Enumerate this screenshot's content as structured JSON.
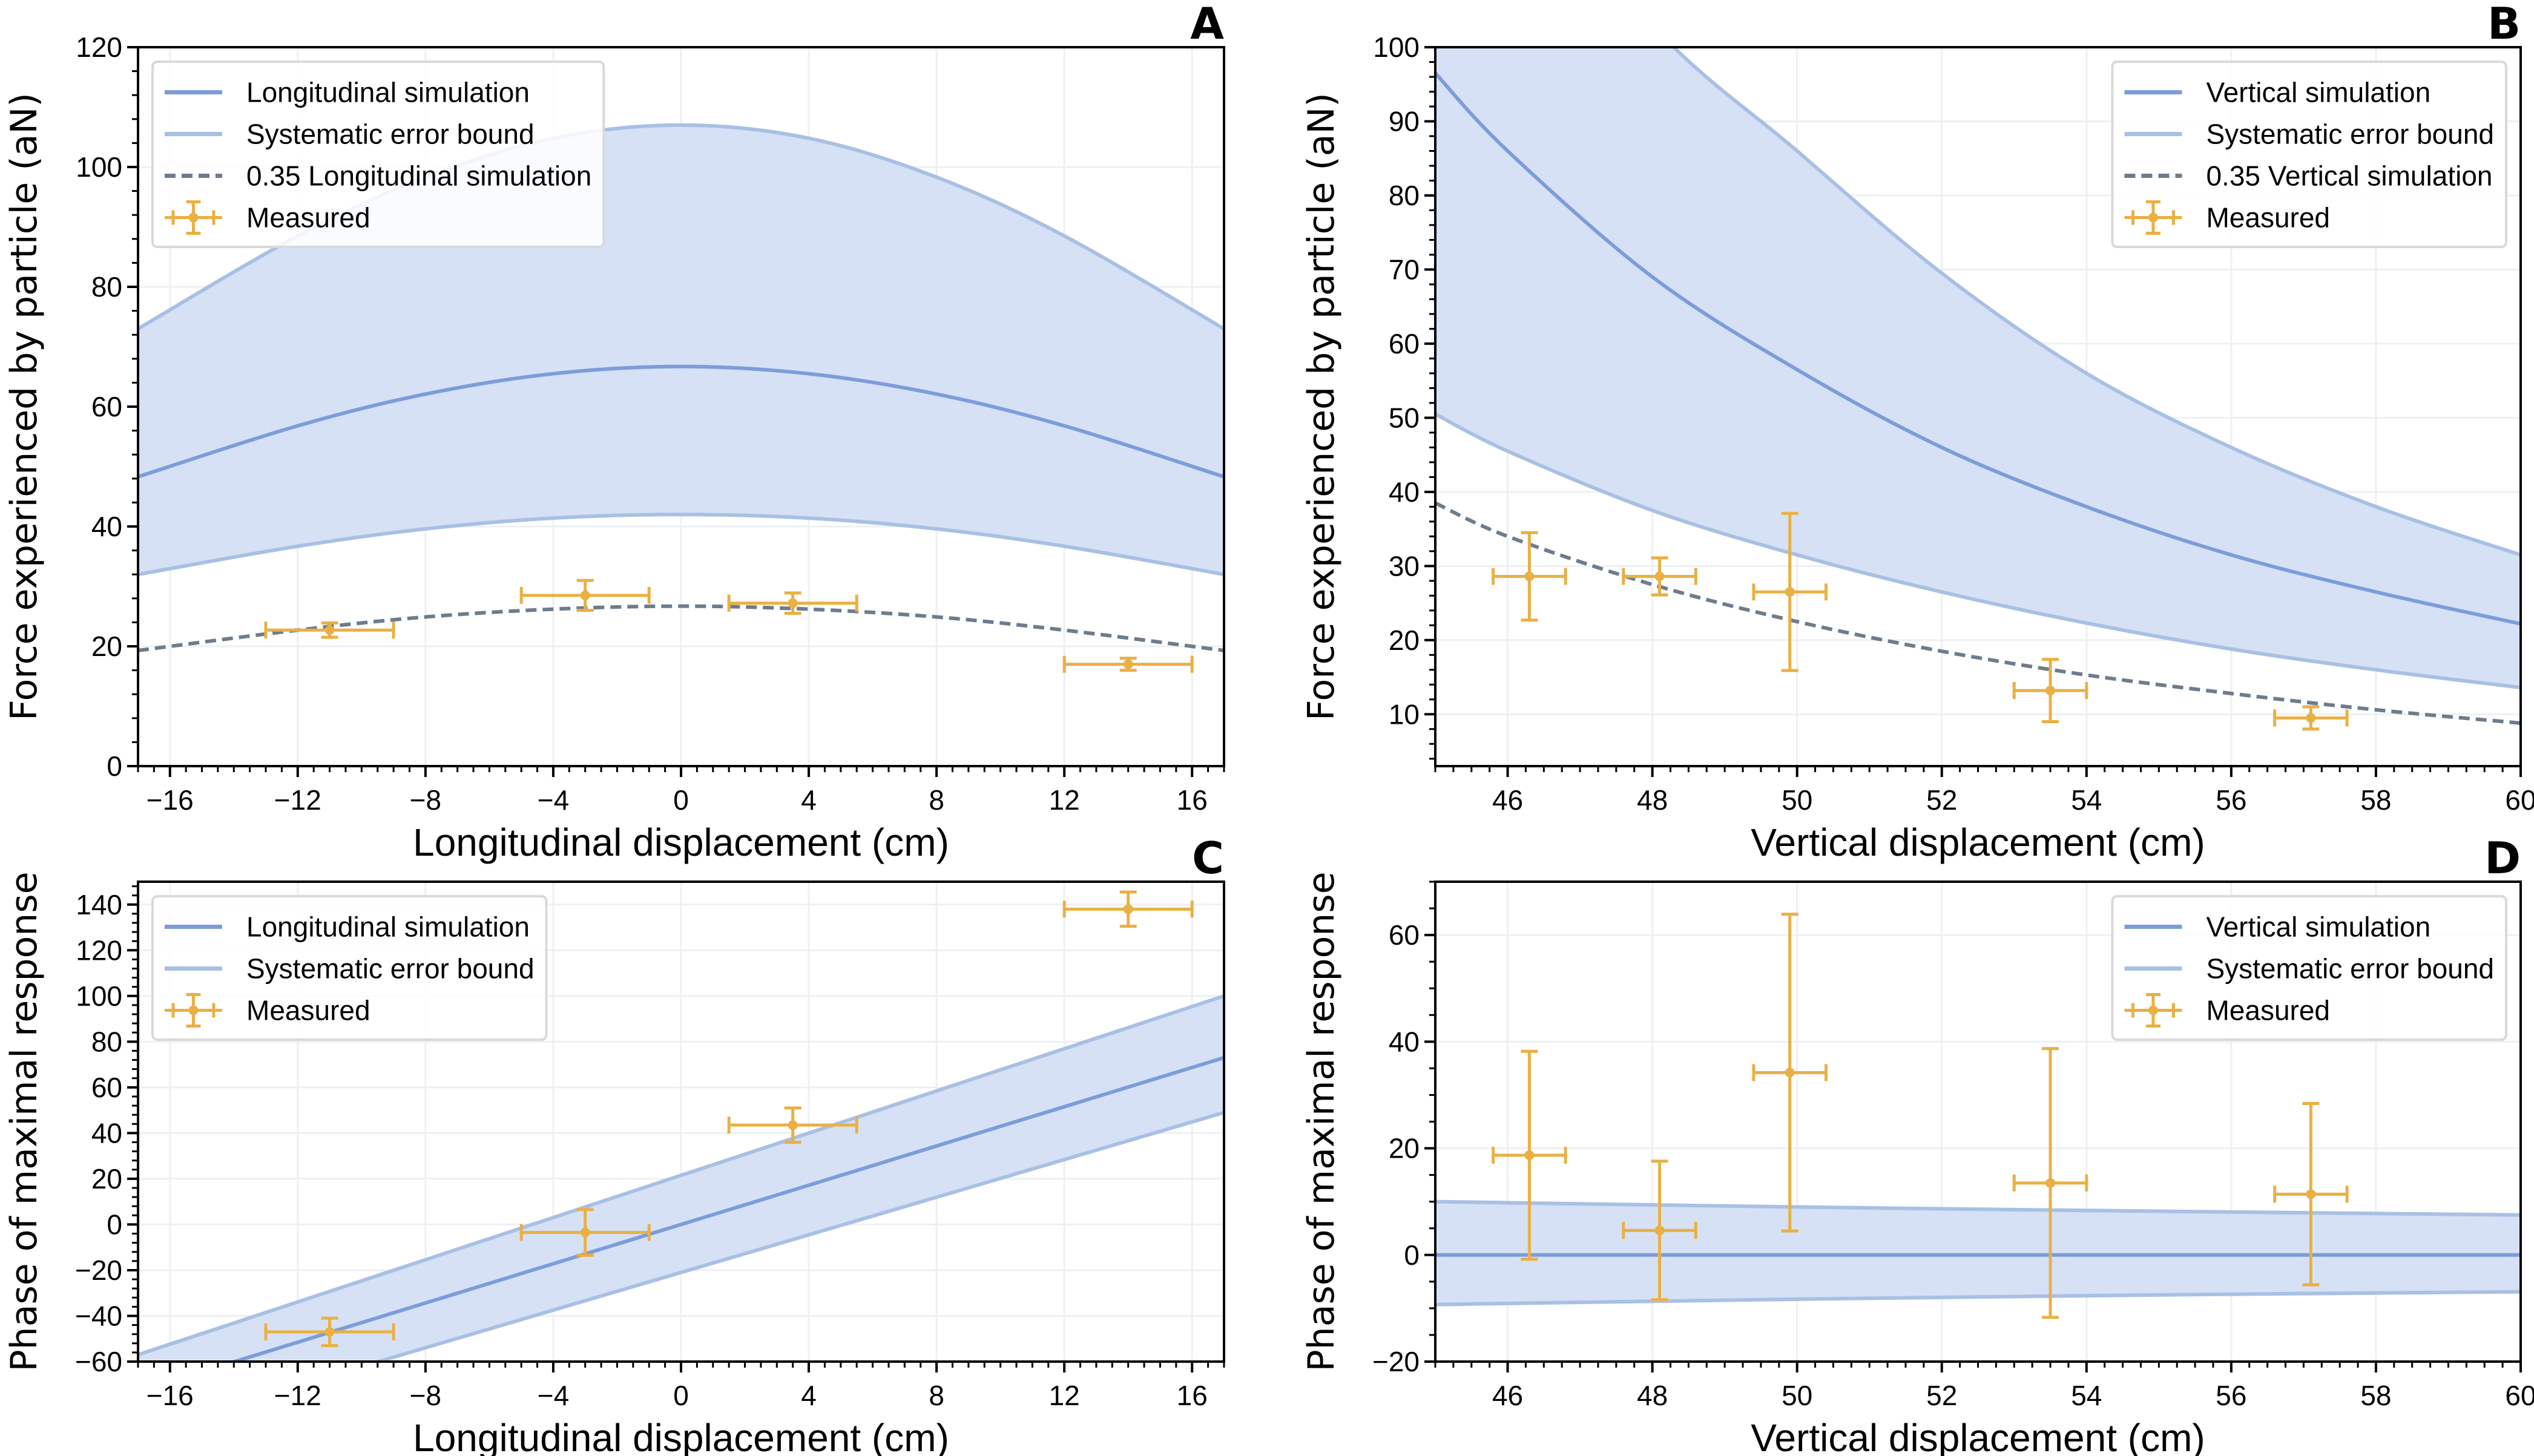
{
  "chart_data": [
    {
      "panel": "A",
      "type": "line",
      "xlabel": "Longitudinal displacement (cm)",
      "ylabel": "Force experienced by particle (aN)",
      "xlim": [
        -17,
        17
      ],
      "ylim": [
        0,
        120
      ],
      "xticks": [
        -16,
        -12,
        -8,
        -4,
        0,
        4,
        8,
        12,
        16
      ],
      "yticks": [
        0,
        20,
        40,
        60,
        80,
        100,
        120
      ],
      "minor_tick_step": {
        "x": 0.5,
        "y": 4
      },
      "grid": true,
      "legend": "upper-left",
      "series": [
        {
          "name": "Longitudinal simulation",
          "role": "simulation",
          "x": [
            -17,
            -12,
            -8,
            -4,
            0,
            4,
            8,
            12,
            17
          ],
          "y": [
            48.3,
            56.8,
            62.1,
            65.5,
            66.7,
            65.5,
            62.1,
            56.8,
            48.3
          ]
        },
        {
          "name": "Systematic error bound",
          "role": "bound",
          "x": [
            -17,
            -12,
            -8,
            -4,
            0,
            4,
            8,
            12,
            17
          ],
          "upper": [
            73,
            88.5,
            98.3,
            104.8,
            107,
            104.8,
            98.3,
            88.5,
            73
          ],
          "lower": [
            32,
            36.7,
            39.6,
            41.4,
            42,
            41.4,
            39.6,
            36.7,
            32
          ]
        },
        {
          "name": "0.35 Longitudinal simulation",
          "role": "scaled",
          "x": [
            -17,
            -12,
            -8,
            -4,
            0,
            4,
            8,
            12,
            17
          ],
          "y": [
            19.3,
            22.7,
            24.9,
            26.2,
            26.7,
            26.2,
            24.9,
            22.7,
            19.3
          ]
        },
        {
          "name": "Measured",
          "role": "measured",
          "points": [
            {
              "x": -11,
              "y": 22.7,
              "xerr": 2,
              "yerr": 1.2
            },
            {
              "x": -3,
              "y": 28.5,
              "xerr": 2,
              "yerr": 2.5
            },
            {
              "x": 3.5,
              "y": 27.2,
              "xerr": 2,
              "yerr": 1.7
            },
            {
              "x": 14,
              "y": 17.0,
              "xerr": 2,
              "yerr": 1.0
            }
          ]
        }
      ]
    },
    {
      "panel": "B",
      "type": "line",
      "xlabel": "Vertical displacement (cm)",
      "ylabel": "Force experienced by particle (aN)",
      "xlim": [
        45,
        60
      ],
      "ylim": [
        3,
        100
      ],
      "xticks": [
        46,
        48,
        50,
        52,
        54,
        56,
        58,
        60
      ],
      "yticks": [
        10,
        20,
        30,
        40,
        50,
        60,
        70,
        80,
        90,
        100
      ],
      "minor_tick_step": {
        "x": 0.25,
        "y": 2
      },
      "grid": true,
      "legend": "upper-right",
      "series": [
        {
          "name": "Vertical simulation",
          "role": "simulation",
          "x": [
            45,
            46,
            48,
            50,
            52,
            54,
            56,
            58,
            60
          ],
          "y": [
            96.5,
            86,
            69,
            56.5,
            46,
            38,
            31.5,
            26.5,
            22.2
          ]
        },
        {
          "name": "Systematic error bound",
          "role": "bound",
          "x": [
            45,
            46,
            48,
            50,
            52,
            54,
            56,
            58,
            60
          ],
          "upper": [
            145,
            129,
            103,
            86,
            69.5,
            56,
            46,
            38,
            31.5
          ],
          "lower": [
            50.5,
            45.5,
            37.5,
            31.5,
            26.5,
            22.3,
            18.8,
            16,
            13.6
          ]
        },
        {
          "name": "0.35 Vertical simulation",
          "role": "scaled",
          "x": [
            45,
            46,
            48,
            50,
            52,
            54,
            56,
            58,
            60
          ],
          "y": [
            38.5,
            34,
            27.5,
            22.5,
            18.5,
            15.3,
            12.8,
            10.6,
            8.8
          ]
        },
        {
          "name": "Measured",
          "role": "measured",
          "points": [
            {
              "x": 46.3,
              "y": 28.6,
              "xerr": 0.5,
              "yerr": 5.9
            },
            {
              "x": 48.1,
              "y": 28.6,
              "xerr": 0.5,
              "yerr": 2.5
            },
            {
              "x": 49.9,
              "y": 26.5,
              "xerr": 0.5,
              "yerr": 10.6
            },
            {
              "x": 53.5,
              "y": 13.2,
              "xerr": 0.5,
              "yerr": 4.2
            },
            {
              "x": 57.1,
              "y": 9.5,
              "xerr": 0.5,
              "yerr": 1.5
            }
          ]
        }
      ]
    },
    {
      "panel": "C",
      "type": "line",
      "xlabel": "Longitudinal displacement (cm)",
      "ylabel": "Phase of maximal response",
      "xlim": [
        -17,
        17
      ],
      "ylim": [
        -60,
        150
      ],
      "xticks": [
        -16,
        -12,
        -8,
        -4,
        0,
        4,
        8,
        12,
        16
      ],
      "yticks": [
        -60,
        -40,
        -20,
        0,
        20,
        40,
        60,
        80,
        100,
        120,
        140
      ],
      "minor_tick_step": {
        "x": 0.5,
        "y": 4
      },
      "grid": true,
      "legend": "upper-left",
      "series": [
        {
          "name": "Longitudinal simulation",
          "role": "simulation",
          "x": [
            -17,
            17
          ],
          "y": [
            -73,
            73
          ]
        },
        {
          "name": "Systematic error bound",
          "role": "bound",
          "x": [
            -17,
            17
          ],
          "upper": [
            -57,
            100
          ],
          "lower": [
            -91,
            49
          ]
        },
        {
          "name": "Measured",
          "role": "measured",
          "points": [
            {
              "x": -11,
              "y": -47,
              "xerr": 2,
              "yerr": 6
            },
            {
              "x": -3,
              "y": -3.5,
              "xerr": 2,
              "yerr": 10
            },
            {
              "x": 3.5,
              "y": 43.5,
              "xerr": 2,
              "yerr": 7.5
            },
            {
              "x": 14,
              "y": 138,
              "xerr": 2,
              "yerr": 7.5
            }
          ]
        }
      ]
    },
    {
      "panel": "D",
      "type": "line",
      "xlabel": "Vertical displacement (cm)",
      "ylabel": "Phase of maximal response",
      "xlim": [
        45,
        60
      ],
      "ylim": [
        -20,
        70
      ],
      "xticks": [
        46,
        48,
        50,
        52,
        54,
        56,
        58,
        60
      ],
      "yticks": [
        -20,
        0,
        20,
        40,
        60
      ],
      "minor_tick_step": {
        "x": 0.25,
        "y": 5
      },
      "grid": true,
      "legend": "upper-right",
      "series": [
        {
          "name": "Vertical simulation",
          "role": "simulation",
          "x": [
            45,
            60
          ],
          "y": [
            0,
            0
          ]
        },
        {
          "name": "Systematic error bound",
          "role": "bound",
          "x": [
            45,
            50,
            55,
            60
          ],
          "upper": [
            10,
            9,
            8.2,
            7.5
          ],
          "lower": [
            -9.3,
            -8.3,
            -7.5,
            -6.9
          ]
        },
        {
          "name": "Measured",
          "role": "measured",
          "points": [
            {
              "x": 46.3,
              "y": 18.7,
              "xerr": 0.5,
              "yerr": 19.5
            },
            {
              "x": 48.1,
              "y": 4.6,
              "xerr": 0.5,
              "yerr": 13
            },
            {
              "x": 49.9,
              "y": 34.2,
              "xerr": 0.5,
              "yerr": 29.7
            },
            {
              "x": 53.5,
              "y": 13.5,
              "xerr": 0.5,
              "yerr": 25.2
            },
            {
              "x": 57.1,
              "y": 11.4,
              "xerr": 0.5,
              "yerr": 17
            }
          ]
        }
      ]
    }
  ],
  "colors": {
    "simulation": "#7d9cd9",
    "bound": "#a9c0e4",
    "band_fill": "#d6e1f5",
    "scaled": "#6e7c8c",
    "measured": "#e9b043",
    "grid": "#eef0f3"
  }
}
